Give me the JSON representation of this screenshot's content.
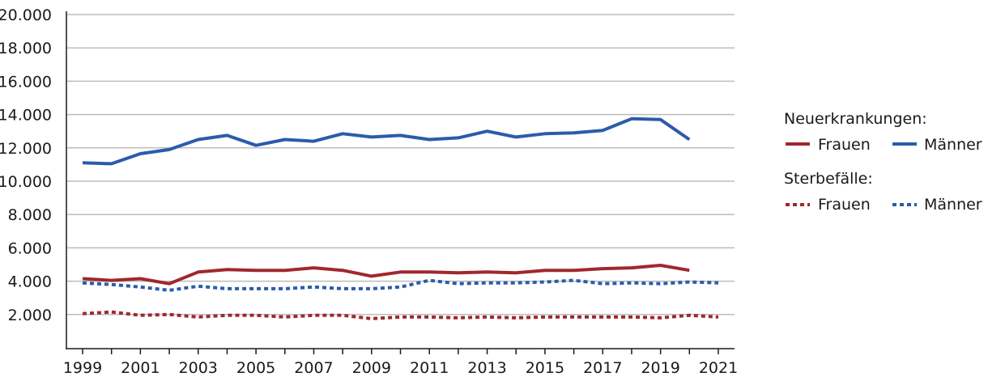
{
  "colors": {
    "frauen": "#a0282d",
    "maenner": "#2b5cab",
    "grid": "#bdbdbd",
    "axis": "#1a1a1a"
  },
  "legend": {
    "group1_title": "Neuerkrankungen:",
    "group2_title": "Sterbefälle:",
    "frauen_label": "Frauen",
    "maenner_label": "Männer"
  },
  "chart_data": {
    "type": "line",
    "title": "",
    "xlabel": "",
    "ylabel": "",
    "xlim": [
      1999,
      2021
    ],
    "ylim": [
      0,
      20000
    ],
    "grid": true,
    "legend_position": "right",
    "x_ticks": [
      1999,
      2000,
      2001,
      2002,
      2003,
      2004,
      2005,
      2006,
      2007,
      2008,
      2009,
      2010,
      2011,
      2012,
      2013,
      2014,
      2015,
      2016,
      2017,
      2018,
      2019,
      2020,
      2021
    ],
    "x_tick_labels": [
      "1999",
      "2001",
      "2003",
      "2005",
      "2007",
      "2009",
      "2011",
      "2013",
      "2015",
      "2017",
      "2019",
      "2021"
    ],
    "y_ticks": [
      2000,
      4000,
      6000,
      8000,
      10000,
      12000,
      14000,
      16000,
      18000,
      20000
    ],
    "y_tick_labels": [
      "2.000",
      "4.000",
      "6.000",
      "8.000",
      "10.000",
      "12.000",
      "14.000",
      "16.000",
      "18.000",
      "20.000"
    ],
    "series": [
      {
        "name": "Neuerkrankungen Frauen",
        "color": "#a0282d",
        "style": "solid",
        "x": [
          1999,
          2000,
          2001,
          2002,
          2003,
          2004,
          2005,
          2006,
          2007,
          2008,
          2009,
          2010,
          2011,
          2012,
          2013,
          2014,
          2015,
          2016,
          2017,
          2018,
          2019,
          2020
        ],
        "values": [
          4150,
          4050,
          4150,
          3850,
          4550,
          4700,
          4650,
          4650,
          4800,
          4650,
          4300,
          4550,
          4550,
          4500,
          4550,
          4500,
          4650,
          4650,
          4750,
          4800,
          4950,
          4650
        ]
      },
      {
        "name": "Neuerkrankungen Männer",
        "color": "#2b5cab",
        "style": "solid",
        "x": [
          1999,
          2000,
          2001,
          2002,
          2003,
          2004,
          2005,
          2006,
          2007,
          2008,
          2009,
          2010,
          2011,
          2012,
          2013,
          2014,
          2015,
          2016,
          2017,
          2018,
          2019,
          2020
        ],
        "values": [
          11100,
          11050,
          11650,
          11900,
          12500,
          12750,
          12150,
          12500,
          12400,
          12850,
          12650,
          12750,
          12500,
          12600,
          13000,
          12650,
          12850,
          12900,
          13050,
          13750,
          13700,
          12500
        ]
      },
      {
        "name": "Sterbefälle Frauen",
        "color": "#a0282d",
        "style": "dotted",
        "x": [
          1999,
          2000,
          2001,
          2002,
          2003,
          2004,
          2005,
          2006,
          2007,
          2008,
          2009,
          2010,
          2011,
          2012,
          2013,
          2014,
          2015,
          2016,
          2017,
          2018,
          2019,
          2020,
          2021
        ],
        "values": [
          2050,
          2150,
          1950,
          2000,
          1850,
          1950,
          1950,
          1850,
          1950,
          1950,
          1750,
          1850,
          1850,
          1800,
          1850,
          1800,
          1850,
          1850,
          1850,
          1850,
          1800,
          1950,
          1850
        ]
      },
      {
        "name": "Sterbefälle Männer",
        "color": "#2b5cab",
        "style": "dotted",
        "x": [
          1999,
          2000,
          2001,
          2002,
          2003,
          2004,
          2005,
          2006,
          2007,
          2008,
          2009,
          2010,
          2011,
          2012,
          2013,
          2014,
          2015,
          2016,
          2017,
          2018,
          2019,
          2020,
          2021
        ],
        "values": [
          3900,
          3800,
          3650,
          3450,
          3700,
          3550,
          3550,
          3550,
          3650,
          3550,
          3550,
          3650,
          4050,
          3850,
          3900,
          3900,
          3950,
          4050,
          3850,
          3900,
          3850,
          3950,
          3900
        ]
      }
    ]
  }
}
